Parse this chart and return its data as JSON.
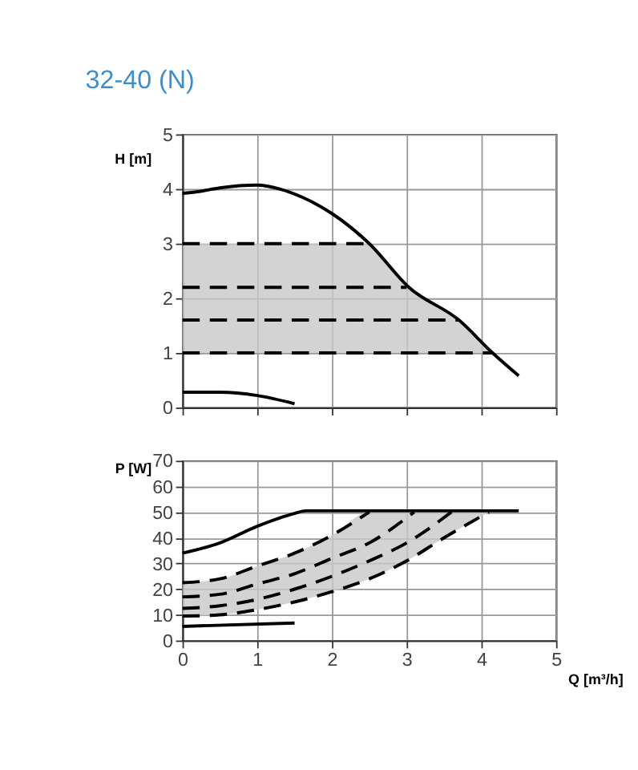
{
  "chart_data": [
    {
      "type": "line",
      "title": "32-40 (N)",
      "ylabel": "H [m]",
      "xlim": [
        0,
        5
      ],
      "xticks": [
        0,
        1,
        2,
        3,
        4,
        5
      ],
      "ylim": [
        0,
        5
      ],
      "yticks": [
        0,
        1,
        2,
        3,
        4,
        5
      ],
      "grid": true,
      "tick_labels": "y",
      "series": [
        {
          "color": "#000000",
          "line_style": "solid",
          "x": [
            0,
            0.2,
            0.5,
            1,
            1.3,
            1.6,
            2,
            2.5,
            3.03,
            3.7,
            4.15,
            4.5
          ],
          "values": [
            3.92,
            3.95,
            4.02,
            4.07,
            4.0,
            3.85,
            3.55,
            3.0,
            2.2,
            1.6,
            1.0,
            0.58
          ]
        },
        {
          "color": "#000000",
          "line_style": "solid",
          "x": [
            0,
            0.5,
            1,
            1.5
          ],
          "values": [
            0.28,
            0.28,
            0.22,
            0.07
          ]
        },
        {
          "color": "#000000",
          "line_style": "dashed",
          "x": [
            0,
            2.45
          ],
          "values": [
            3,
            3
          ]
        },
        {
          "color": "#000000",
          "line_style": "dashed",
          "x": [
            0,
            3.0
          ],
          "values": [
            2.2,
            2.2
          ]
        },
        {
          "color": "#000000",
          "line_style": "dashed",
          "x": [
            0,
            3.7
          ],
          "values": [
            1.6,
            1.6
          ]
        },
        {
          "color": "#000000",
          "line_style": "dashed",
          "x": [
            0,
            2.45,
            3.0,
            3.7,
            4.15
          ],
          "values": [
            1,
            1,
            1,
            1,
            1
          ],
          "lower": [
            1,
            1,
            1,
            1,
            1
          ],
          "upper": [
            3,
            3,
            2.2,
            1.6,
            1
          ]
        }
      ]
    },
    {
      "type": "line",
      "xlabel": "Q [m³/h]",
      "ylabel": "P [W]",
      "xlim": [
        0,
        5
      ],
      "xticks": [
        0,
        1,
        2,
        3,
        4,
        5
      ],
      "ylim": [
        0,
        70
      ],
      "yticks": [
        0,
        10,
        20,
        30,
        40,
        50,
        60,
        70
      ],
      "grid": true,
      "series": [
        {
          "color": "#000000",
          "line_style": "solid",
          "x": [
            0,
            0.5,
            1,
            1.5,
            1.65,
            3.5,
            4.5
          ],
          "values": [
            34,
            38,
            44.5,
            49.5,
            50.5,
            50.5,
            50.5
          ]
        },
        {
          "color": "#000000",
          "line_style": "solid",
          "x": [
            0,
            1.5
          ],
          "values": [
            5.5,
            6.8
          ]
        },
        {
          "color": "#000000",
          "line_style": "dashed",
          "x": [
            0,
            0.5,
            1,
            1.5,
            2,
            2.5
          ],
          "values": [
            22.5,
            24,
            29,
            34,
            41,
            50
          ]
        },
        {
          "color": "#000000",
          "line_style": "dashed",
          "x": [
            0,
            0.5,
            1,
            1.5,
            2,
            2.5,
            3.1
          ],
          "values": [
            17,
            18,
            22,
            26,
            32,
            38,
            50
          ]
        },
        {
          "color": "#000000",
          "line_style": "dashed",
          "x": [
            0,
            0.5,
            1,
            1.5,
            2,
            2.5,
            3,
            3.6
          ],
          "values": [
            12.5,
            13.5,
            16,
            20,
            25,
            31,
            38,
            50
          ]
        },
        {
          "color": "#000000",
          "line_style": "dashed",
          "x": [
            0,
            0.5,
            1,
            1.5,
            2,
            2.5,
            3,
            3.5,
            4.1
          ],
          "values": [
            9.5,
            10,
            12,
            15,
            19,
            24,
            31,
            40,
            50
          ],
          "lower": [
            9.5,
            10,
            12,
            15,
            19,
            24,
            31,
            40,
            50
          ],
          "upper": [
            22.5,
            24,
            29,
            34,
            41,
            50,
            50,
            50,
            50
          ]
        }
      ]
    }
  ]
}
